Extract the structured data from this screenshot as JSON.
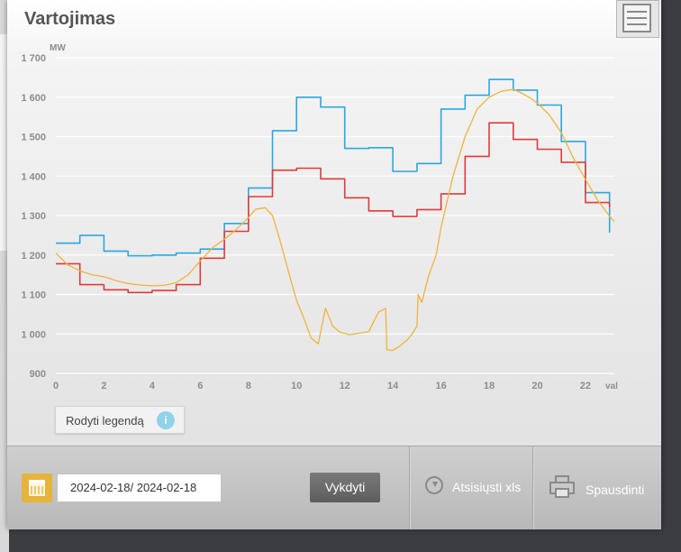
{
  "window": {
    "title": "Vartojimas"
  },
  "chart_data": {
    "type": "line",
    "ylabel": "MW",
    "xlabel": "val",
    "ylim": [
      900,
      1700
    ],
    "xlim": [
      0,
      23.2
    ],
    "yticks": [
      900,
      1000,
      1100,
      1200,
      1300,
      1400,
      1500,
      1600,
      1700
    ],
    "ytick_labels": [
      "900",
      "1 000",
      "1 100",
      "1 200",
      "1 300",
      "1 400",
      "1 500",
      "1 600",
      "1 700"
    ],
    "xticks": [
      0,
      2,
      4,
      6,
      8,
      10,
      12,
      14,
      16,
      18,
      20,
      22
    ],
    "xtick_labels": [
      "0",
      "2",
      "4",
      "6",
      "8",
      "10",
      "12",
      "14",
      "16",
      "18",
      "20",
      "22"
    ],
    "grid": true,
    "series": [
      {
        "color": "#2ca7df",
        "step": true,
        "x": [
          0,
          1,
          2,
          3,
          4,
          5,
          6,
          7,
          8,
          9,
          10,
          11,
          12,
          13,
          14,
          15,
          16,
          17,
          18,
          19,
          20,
          21,
          22,
          23
        ],
        "values": [
          1230,
          1250,
          1210,
          1198,
          1200,
          1205,
          1215,
          1280,
          1370,
          1515,
          1600,
          1575,
          1470,
          1472,
          1412,
          1432,
          1570,
          1605,
          1645,
          1618,
          1580,
          1488,
          1358,
          1258
        ]
      },
      {
        "color": "#e03a3a",
        "step": true,
        "x": [
          0,
          1,
          2,
          3,
          4,
          5,
          6,
          7,
          8,
          9,
          10,
          11,
          12,
          13,
          14,
          15,
          16,
          17,
          18,
          19,
          20,
          21,
          22,
          23
        ],
        "values": [
          1178,
          1125,
          1112,
          1105,
          1110,
          1125,
          1192,
          1260,
          1348,
          1415,
          1420,
          1393,
          1345,
          1312,
          1298,
          1315,
          1355,
          1450,
          1535,
          1493,
          1468,
          1435,
          1333,
          1322
        ]
      },
      {
        "color": "#f0b43c",
        "step": false,
        "x": [
          0,
          0.5,
          1,
          1.5,
          2,
          2.5,
          3,
          3.5,
          4,
          4.5,
          5,
          5.5,
          6,
          6.5,
          7,
          7.5,
          8,
          8.3,
          8.7,
          9,
          9.3,
          9.7,
          10,
          10.3,
          10.6,
          10.9,
          11.2,
          11.5,
          11.8,
          12.2,
          12.6,
          13,
          13.4,
          13.7,
          13.75,
          14,
          14.3,
          14.6,
          14.8,
          15,
          15.05,
          15.2,
          15.5,
          15.8,
          16,
          16.5,
          17,
          17.5,
          18,
          18.5,
          19,
          19.3,
          19.7,
          20,
          20.5,
          21,
          21.5,
          22,
          22.5,
          23,
          23.2
        ],
        "values": [
          1205,
          1175,
          1160,
          1150,
          1145,
          1135,
          1128,
          1124,
          1122,
          1123,
          1130,
          1150,
          1185,
          1218,
          1240,
          1265,
          1295,
          1316,
          1320,
          1300,
          1240,
          1150,
          1085,
          1040,
          990,
          975,
          1065,
          1020,
          1005,
          998,
          1002,
          1006,
          1055,
          1065,
          960,
          958,
          970,
          985,
          1000,
          1020,
          1100,
          1080,
          1150,
          1200,
          1270,
          1400,
          1500,
          1570,
          1600,
          1615,
          1620,
          1612,
          1598,
          1585,
          1555,
          1510,
          1445,
          1392,
          1340,
          1298,
          1285
        ]
      }
    ]
  },
  "legend_button": {
    "label": "Rodyti legendą",
    "info_glyph": "i"
  },
  "toolbar": {
    "date_range": "2024-02-18/ 2024-02-18",
    "execute_label": "Vykdyti",
    "download_label": "Atsisiųsti xls",
    "print_label": "Spausdinti"
  },
  "colors": {
    "accent": "#e6b33b",
    "blue_series": "#2ca7df",
    "red_series": "#e03a3a",
    "orange_series": "#f0b43c"
  }
}
